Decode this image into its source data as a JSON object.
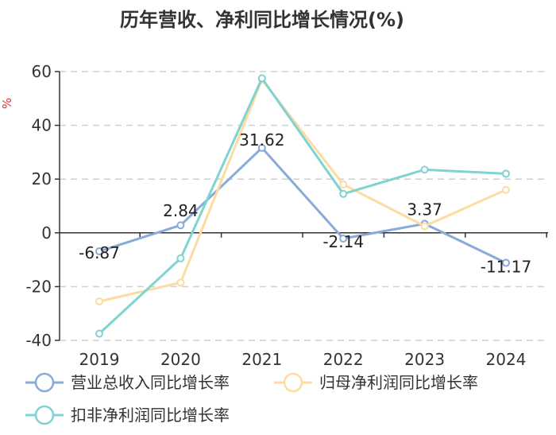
{
  "chart_data": {
    "type": "line",
    "title": "历年营收、净利同比增长情况(%)",
    "ylabel": "%",
    "xlabel": "",
    "ylim": [
      -40,
      60
    ],
    "yticks": [
      -40,
      -20,
      0,
      20,
      40,
      60
    ],
    "categories": [
      "2019",
      "2020",
      "2021",
      "2022",
      "2023",
      "2024"
    ],
    "series": [
      {
        "name": "营业总收入同比增长率",
        "color": "#8aaad8",
        "values": [
          -6.87,
          2.84,
          31.62,
          -2.14,
          3.37,
          -11.17
        ],
        "labels": [
          "-6.87",
          "2.84",
          "31.62",
          "-2.14",
          "3.37",
          "-11.17"
        ]
      },
      {
        "name": "归母净利润同比增长率",
        "color": "#fcdca0",
        "values": [
          -25.5,
          -18.5,
          57.0,
          18.0,
          2.5,
          16.0
        ]
      },
      {
        "name": "扣非净利润同比增长率",
        "color": "#7fd3d0",
        "values": [
          -37.5,
          -9.5,
          57.5,
          14.5,
          23.5,
          22.0
        ]
      }
    ],
    "grid": true,
    "legend_position": "bottom"
  }
}
